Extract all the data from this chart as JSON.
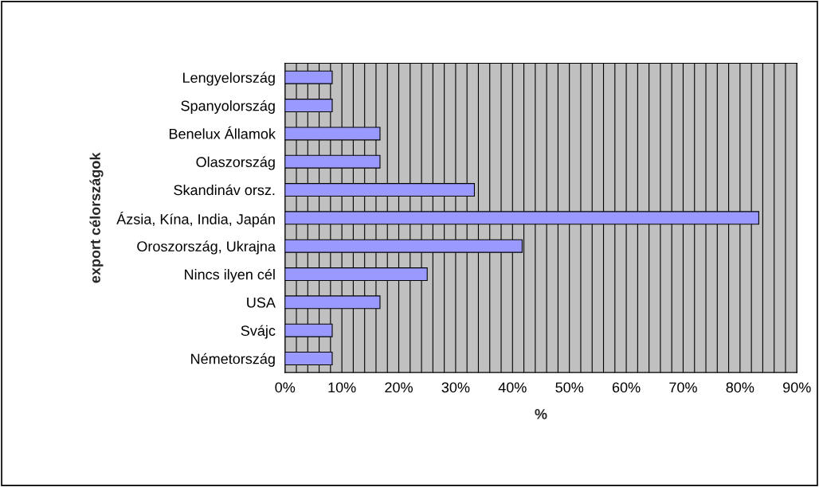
{
  "chart_data": {
    "type": "bar",
    "orientation": "horizontal",
    "xlabel": "%",
    "ylabel": "export célországok",
    "categories": [
      "Lengyelország",
      "Spanyolország",
      "Benelux Államok",
      "Olaszország",
      "Skandináv orsz.",
      "Ázsia, Kína, India, Japán",
      "Oroszország, Ukrajna",
      "Nincs ilyen cél",
      "USA",
      "Svájc",
      "Németország"
    ],
    "values": [
      8.3,
      8.3,
      16.7,
      16.7,
      33.3,
      83.3,
      41.7,
      25,
      16.7,
      8.3,
      8.3
    ],
    "color": "#9999ff",
    "xlim": [
      0,
      90
    ],
    "xticks": [
      {
        "value": 0,
        "label": "0%"
      },
      {
        "value": 2,
        "label": null
      },
      {
        "value": 4,
        "label": null
      },
      {
        "value": 6,
        "label": null
      },
      {
        "value": 8,
        "label": null
      },
      {
        "value": 10,
        "label": "10%"
      },
      {
        "value": 12,
        "label": null
      },
      {
        "value": 14,
        "label": null
      },
      {
        "value": 16,
        "label": null
      },
      {
        "value": 18,
        "label": null
      },
      {
        "value": 20,
        "label": "20%"
      },
      {
        "value": 22,
        "label": null
      },
      {
        "value": 24,
        "label": null
      },
      {
        "value": 26,
        "label": null
      },
      {
        "value": 28,
        "label": null
      },
      {
        "value": 30,
        "label": "30%"
      },
      {
        "value": 32,
        "label": null
      },
      {
        "value": 34,
        "label": null
      },
      {
        "value": 36,
        "label": null
      },
      {
        "value": 38,
        "label": null
      },
      {
        "value": 40,
        "label": "40%"
      },
      {
        "value": 42,
        "label": null
      },
      {
        "value": 44,
        "label": null
      },
      {
        "value": 46,
        "label": null
      },
      {
        "value": 48,
        "label": null
      },
      {
        "value": 50,
        "label": "50%"
      },
      {
        "value": 52,
        "label": null
      },
      {
        "value": 54,
        "label": null
      },
      {
        "value": 56,
        "label": null
      },
      {
        "value": 58,
        "label": null
      },
      {
        "value": 60,
        "label": "60%"
      },
      {
        "value": 62,
        "label": null
      },
      {
        "value": 64,
        "label": null
      },
      {
        "value": 66,
        "label": null
      },
      {
        "value": 68,
        "label": null
      },
      {
        "value": 70,
        "label": "70%"
      },
      {
        "value": 72,
        "label": null
      },
      {
        "value": 74,
        "label": null
      },
      {
        "value": 76,
        "label": null
      },
      {
        "value": 78,
        "label": null
      },
      {
        "value": 80,
        "label": "80%"
      },
      {
        "value": 82,
        "label": null
      },
      {
        "value": 84,
        "label": null
      },
      {
        "value": 86,
        "label": null
      },
      {
        "value": 88,
        "label": null
      },
      {
        "value": 90,
        "label": "90%"
      }
    ],
    "grid": "x",
    "legend": false
  }
}
